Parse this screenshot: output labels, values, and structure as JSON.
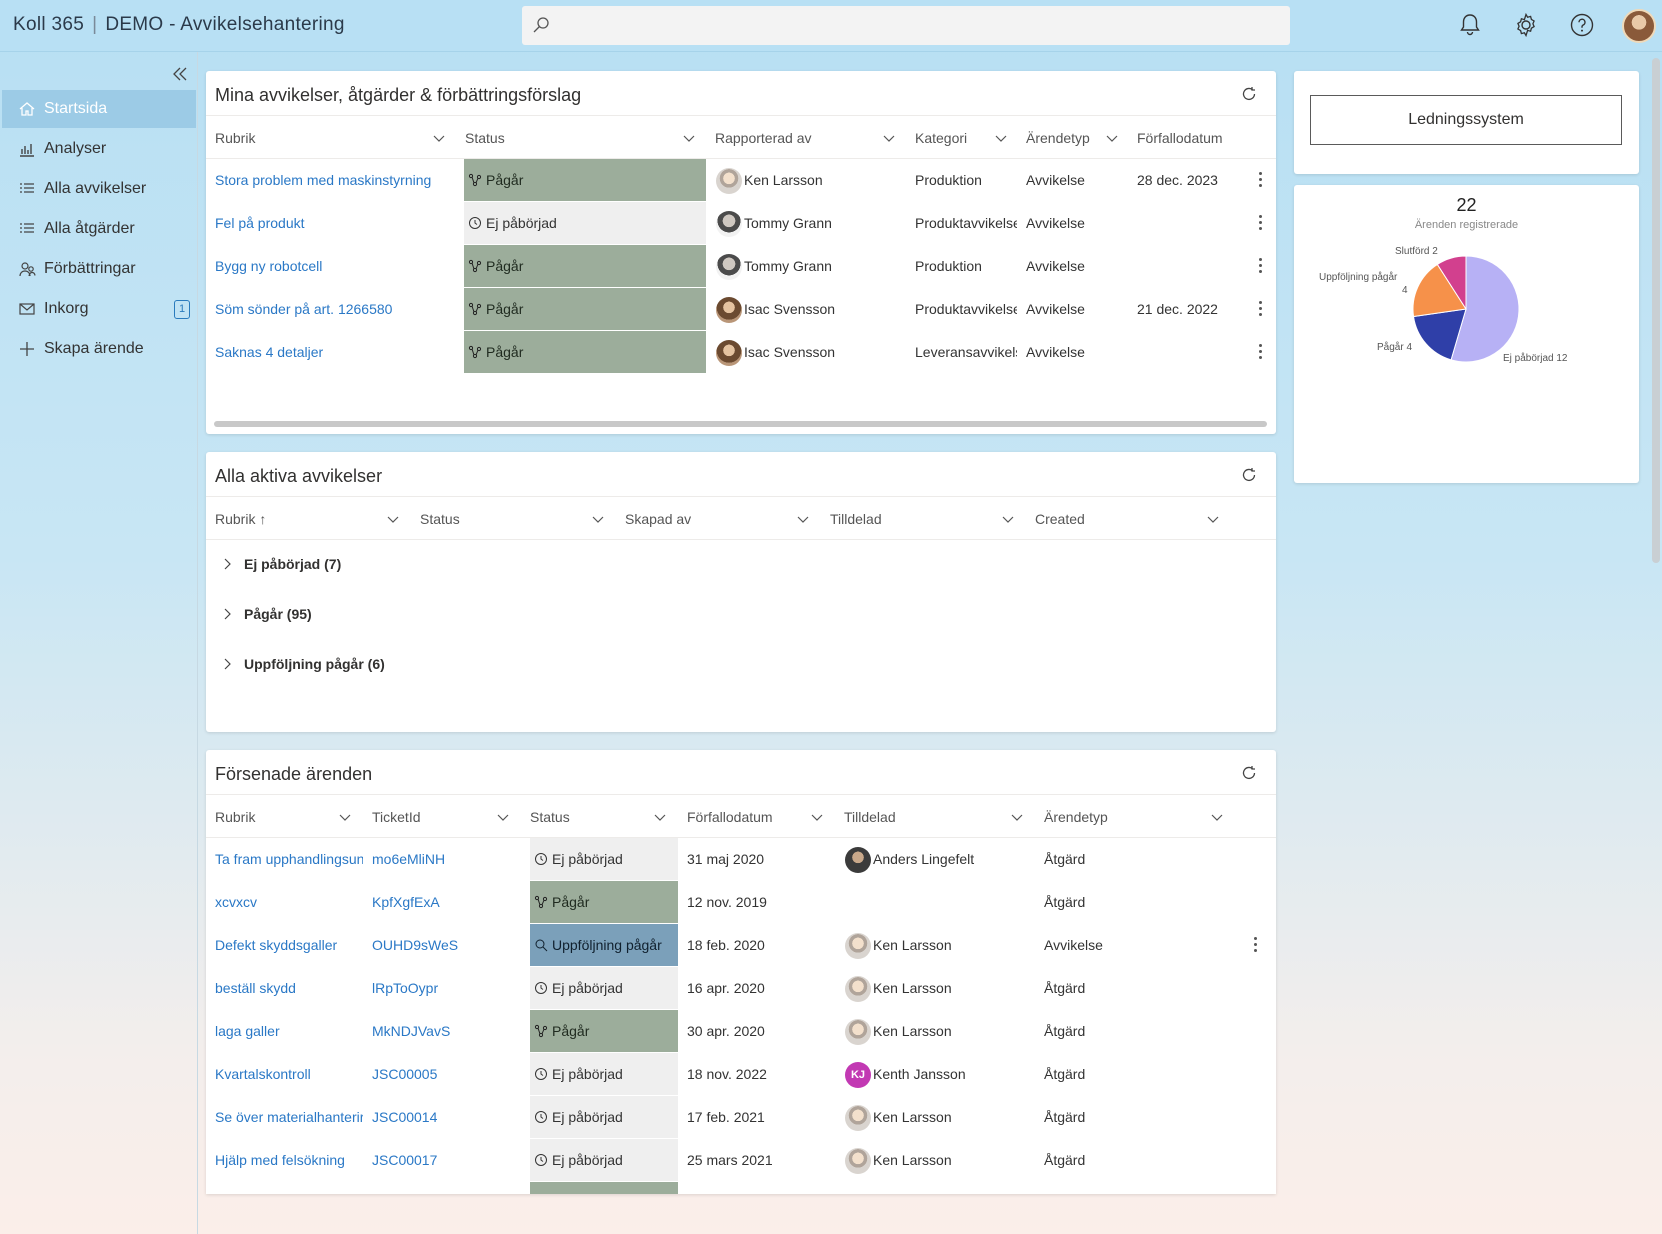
{
  "app": {
    "brand": "Koll 365",
    "title": "DEMO - Avvikelsehantering"
  },
  "topbar": {
    "bell": "bell-icon",
    "settings": "gear-icon",
    "help": "help-icon"
  },
  "sidebar": {
    "items": [
      {
        "label": "Startsida",
        "icon": "home-icon"
      },
      {
        "label": "Analyser",
        "icon": "chart-icon"
      },
      {
        "label": "Alla avvikelser",
        "icon": "list-icon"
      },
      {
        "label": "Alla åtgärder",
        "icon": "list-icon"
      },
      {
        "label": "Förbättringar",
        "icon": "people-icon"
      },
      {
        "label": "Inkorg",
        "icon": "mail-icon",
        "badge": "1"
      },
      {
        "label": "Skapa ärende",
        "icon": "plus-icon"
      }
    ]
  },
  "mina": {
    "title": "Mina avvikelser, åtgärder & förbättringsförslag",
    "headers": [
      "Rubrik",
      "Status",
      "Rapporterad av",
      "Kategori",
      "Ärendetyp",
      "Förfallodatum"
    ],
    "rows": [
      {
        "rubrik": "Stora problem med maskinstyrning",
        "status": "Pågår",
        "by": "Ken Larsson",
        "av": "ken",
        "kategori": "Produktion",
        "typ": "Avvikelse",
        "date": "28 dec. 2023"
      },
      {
        "rubrik": "Fel på produkt",
        "status": "Ej påbörjad",
        "by": "Tommy Grann",
        "av": "tommy",
        "kategori": "Produktavvikelse",
        "typ": "Avvikelse",
        "date": ""
      },
      {
        "rubrik": "Bygg ny robotcell",
        "status": "Pågår",
        "by": "Tommy Grann",
        "av": "tommy",
        "kategori": "Produktion",
        "typ": "Avvikelse",
        "date": ""
      },
      {
        "rubrik": "Söm sönder på art. 1266580",
        "status": "Pågår",
        "by": "Isac Svensson",
        "av": "isac",
        "kategori": "Produktavvikelse",
        "typ": "Avvikelse",
        "date": "21 dec. 2022"
      },
      {
        "rubrik": "Saknas 4 detaljer",
        "status": "Pågår",
        "by": "Isac Svensson",
        "av": "isac",
        "kategori": "Leveransavvikelse",
        "typ": "Avvikelse",
        "date": ""
      }
    ]
  },
  "aktiva": {
    "title": "Alla aktiva avvikelser",
    "headers": [
      "Rubrik",
      "Status",
      "Skapad av",
      "Tilldelad",
      "Created"
    ],
    "groups": [
      "Ej påbörjad (7)",
      "Pågår (95)",
      "Uppföljning pågår (6)"
    ]
  },
  "forsenade": {
    "title": "Försenade ärenden",
    "headers": [
      "Rubrik",
      "TicketId",
      "Status",
      "Förfallodatum",
      "Tilldelad",
      "Ärendetyp"
    ],
    "rows": [
      {
        "rubrik": "Ta fram upphandlingsun",
        "ticket": "mo6eMliNH",
        "status": "Ej påbörjad",
        "date": "31 maj 2020",
        "who": "Anders Lingefelt",
        "av": "anders",
        "typ": "Åtgärd"
      },
      {
        "rubrik": "xcvxcv",
        "ticket": "KpfXgfExA",
        "status": "Pågår",
        "date": "12 nov. 2019",
        "who": "",
        "av": "",
        "typ": "Åtgärd"
      },
      {
        "rubrik": "Defekt skyddsgaller",
        "ticket": "OUHD9sWeS",
        "status": "Uppföljning pågår",
        "date": "18 feb. 2020",
        "who": "Ken Larsson",
        "av": "ken",
        "typ": "Avvikelse"
      },
      {
        "rubrik": "beställ skydd",
        "ticket": "lRpToOypr",
        "status": "Ej påbörjad",
        "date": "16 apr. 2020",
        "who": "Ken Larsson",
        "av": "ken",
        "typ": "Åtgärd"
      },
      {
        "rubrik": "laga galler",
        "ticket": "MkNDJVavS",
        "status": "Pågår",
        "date": "30 apr. 2020",
        "who": "Ken Larsson",
        "av": "ken",
        "typ": "Åtgärd"
      },
      {
        "rubrik": "Kvartalskontroll",
        "ticket": "JSC00005",
        "status": "Ej påbörjad",
        "date": "18 nov. 2022",
        "who": "Kenth Jansson",
        "av": "kj",
        "typ": "Åtgärd"
      },
      {
        "rubrik": "Se över materialhanterir",
        "ticket": "JSC00014",
        "status": "Ej påbörjad",
        "date": "17 feb. 2021",
        "who": "Ken Larsson",
        "av": "ken",
        "typ": "Åtgärd"
      },
      {
        "rubrik": "Hjälp med felsökning",
        "ticket": "JSC00017",
        "status": "Ej påbörjad",
        "date": "25 mars 2021",
        "who": "Ken Larsson",
        "av": "ken",
        "typ": "Åtgärd"
      }
    ]
  },
  "ledning": {
    "label": "Ledningssystem"
  },
  "pie": {
    "count": "22",
    "subtitle": "Ärenden registrerade",
    "labels": {
      "slutford": "Slutförd 2",
      "uppfoljning": "Uppföljning pågår",
      "uppfoljning_n": "4",
      "pagar": "Pågår 4",
      "ej": "Ej påbörjad 12"
    }
  },
  "chart_data": {
    "type": "pie",
    "title": "22",
    "subtitle": "Ärenden registrerade",
    "categories": [
      "Ej påbörjad",
      "Pågår",
      "Uppföljning pågår",
      "Slutförd"
    ],
    "values": [
      12,
      4,
      4,
      2
    ],
    "colors": [
      "#b7b1f5",
      "#2f3fa8",
      "#f6914a",
      "#d2408e"
    ]
  }
}
